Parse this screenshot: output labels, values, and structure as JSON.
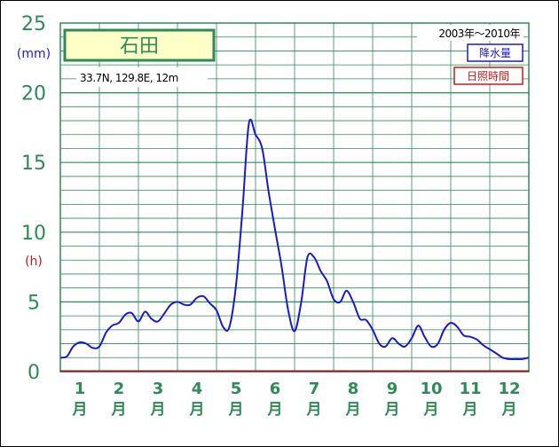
{
  "chart_data": {
    "type": "line",
    "station_name": "石田",
    "station_info": "33.7N,  129.8E,  12m",
    "period": "2003年〜2010年",
    "legend": [
      {
        "label": "降水量",
        "color": "#1a1acc"
      },
      {
        "label": "日照時間",
        "color": "#cc1a1a"
      }
    ],
    "units": {
      "precip": "(mm)",
      "sun": "(h)"
    },
    "y_ticks": [
      "0",
      "5",
      "10",
      "15",
      "20",
      "25"
    ],
    "ylim": [
      0,
      25
    ],
    "months": [
      {
        "num": "1",
        "unit": "月"
      },
      {
        "num": "2",
        "unit": "月"
      },
      {
        "num": "3",
        "unit": "月"
      },
      {
        "num": "4",
        "unit": "月"
      },
      {
        "num": "5",
        "unit": "月"
      },
      {
        "num": "6",
        "unit": "月"
      },
      {
        "num": "7",
        "unit": "月"
      },
      {
        "num": "8",
        "unit": "月"
      },
      {
        "num": "9",
        "unit": "月"
      },
      {
        "num": "10",
        "unit": "月"
      },
      {
        "num": "11",
        "unit": "月"
      },
      {
        "num": "12",
        "unit": "月"
      }
    ],
    "series": [
      {
        "name": "降水量",
        "color": "#1a1acc",
        "x": [
          0.5,
          0.67,
          0.83,
          1.0,
          1.17,
          1.33,
          1.5,
          1.67,
          1.83,
          2.0,
          2.17,
          2.33,
          2.5,
          2.67,
          2.83,
          3.0,
          3.17,
          3.33,
          3.5,
          3.67,
          3.83,
          4.0,
          4.17,
          4.33,
          4.5,
          4.67,
          4.83,
          5.0,
          5.17,
          5.33,
          5.5,
          5.67,
          5.83,
          6.0,
          6.17,
          6.33,
          6.5,
          6.67,
          6.83,
          7.0,
          7.17,
          7.33,
          7.5,
          7.67,
          7.83,
          8.0,
          8.17,
          8.33,
          8.5,
          8.67,
          8.83,
          9.0,
          9.17,
          9.33,
          9.5,
          9.67,
          9.83,
          10.0,
          10.17,
          10.33,
          10.5,
          10.67,
          10.83,
          11.0,
          11.17,
          11.33,
          11.5,
          11.67,
          11.83,
          12.0,
          12.17,
          12.33,
          12.5
        ],
        "values": [
          1.0,
          1.1,
          1.8,
          2.1,
          2.0,
          1.7,
          1.8,
          2.8,
          3.3,
          3.5,
          4.1,
          4.2,
          3.6,
          4.3,
          3.8,
          3.6,
          4.2,
          4.8,
          5.0,
          4.8,
          4.8,
          5.3,
          5.4,
          4.9,
          4.4,
          3.2,
          3.2,
          6.2,
          11.8,
          17.8,
          17.0,
          16.0,
          13.0,
          10.2,
          7.5,
          4.5,
          2.9,
          5.0,
          8.2,
          8.2,
          7.2,
          6.5,
          5.2,
          5.0,
          5.8,
          5.0,
          3.8,
          3.7,
          3.0,
          2.0,
          1.8,
          2.4,
          2.0,
          1.8,
          2.4,
          3.3,
          2.5,
          1.8,
          2.0,
          3.0,
          3.5,
          3.2,
          2.6,
          2.5,
          2.3,
          1.9,
          1.6,
          1.3,
          1.0,
          0.9,
          0.9,
          0.9,
          1.0
        ]
      }
    ]
  }
}
